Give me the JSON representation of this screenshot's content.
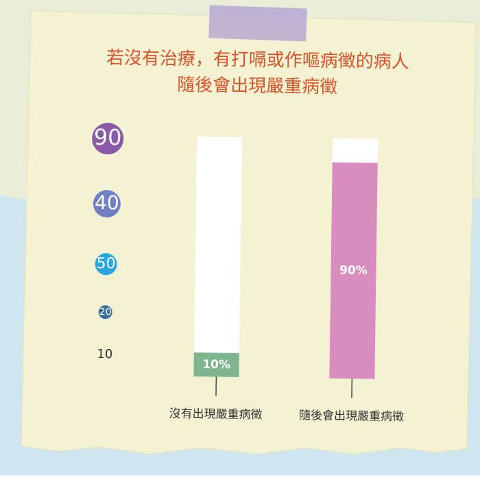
{
  "chart_data": {
    "type": "bar",
    "title": [
      "若沒有治療，有打嗝或作嘔病徵的病人",
      "隨後會出現嚴重病徵"
    ],
    "categories": [
      "沒有出現嚴重病徵",
      "隨後會出現嚴重病徵"
    ],
    "values": [
      10,
      90
    ],
    "value_labels": [
      "10%",
      "90%"
    ],
    "colors": [
      "#7db58c",
      "#d98cbf"
    ],
    "ylim": [
      0,
      100
    ],
    "circle_labels": [
      {
        "value": 90,
        "color": "#8a5aa6"
      },
      {
        "value": 40,
        "color": "#7180c2"
      },
      {
        "value": 50,
        "color": "#2aa7df"
      },
      {
        "value": 20,
        "color": "#3b6e98"
      },
      {
        "value": 10,
        "color": "none"
      }
    ]
  }
}
